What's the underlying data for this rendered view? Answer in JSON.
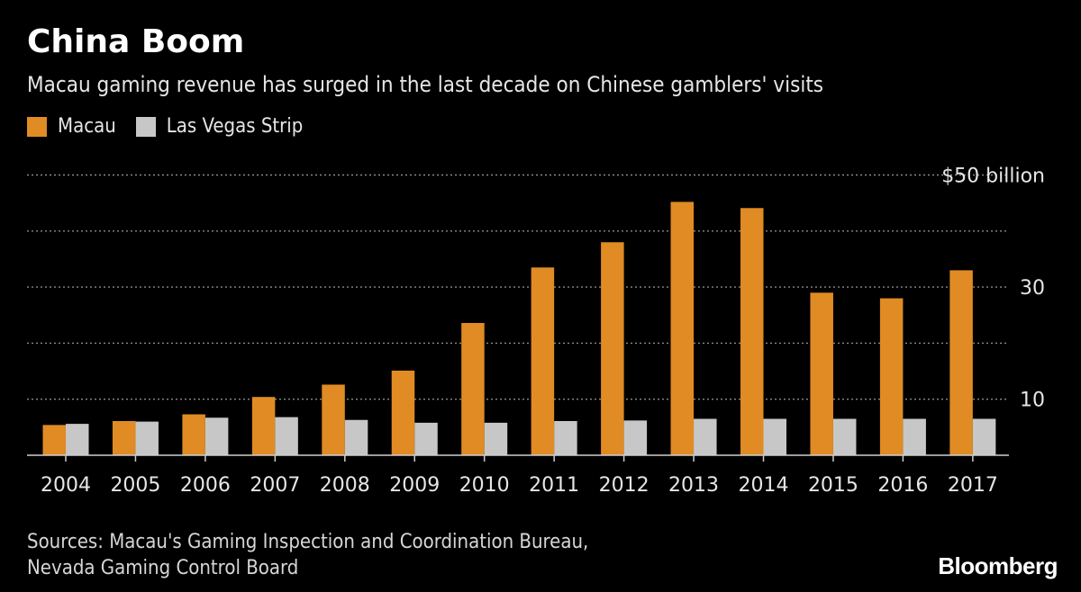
{
  "header": {
    "title": "China Boom",
    "subtitle": "Macau gaming revenue has surged in the last decade on Chinese gamblers' visits"
  },
  "legend": [
    {
      "label": "Macau",
      "color": "#e08b24"
    },
    {
      "label": "Las Vegas Strip",
      "color": "#c7c7c7"
    }
  ],
  "chart_data": {
    "type": "bar",
    "categories": [
      "2004",
      "2005",
      "2006",
      "2007",
      "2008",
      "2009",
      "2010",
      "2011",
      "2012",
      "2013",
      "2014",
      "2015",
      "2016",
      "2017"
    ],
    "series": [
      {
        "name": "Macau",
        "color": "#e08b24",
        "values": [
          5.4,
          6.1,
          7.3,
          10.4,
          12.6,
          15.1,
          23.6,
          33.5,
          38.0,
          45.2,
          44.1,
          29.0,
          28.0,
          33.0
        ]
      },
      {
        "name": "Las Vegas Strip",
        "color": "#c7c7c7",
        "values": [
          5.6,
          6.0,
          6.7,
          6.8,
          6.3,
          5.8,
          5.8,
          6.1,
          6.2,
          6.5,
          6.5,
          6.5,
          6.5,
          6.5
        ]
      }
    ],
    "yticks": [
      10,
      30,
      50
    ],
    "ytick_labels": [
      "10",
      "30",
      "$50 billion"
    ],
    "ylim": [
      0,
      50
    ],
    "grid": true,
    "legend_position": "top-left"
  },
  "footer": {
    "source_line1": "Sources: Macau's Gaming Inspection and Coordination Bureau,",
    "source_line2": "Nevada Gaming Control Board",
    "brand": "Bloomberg"
  }
}
